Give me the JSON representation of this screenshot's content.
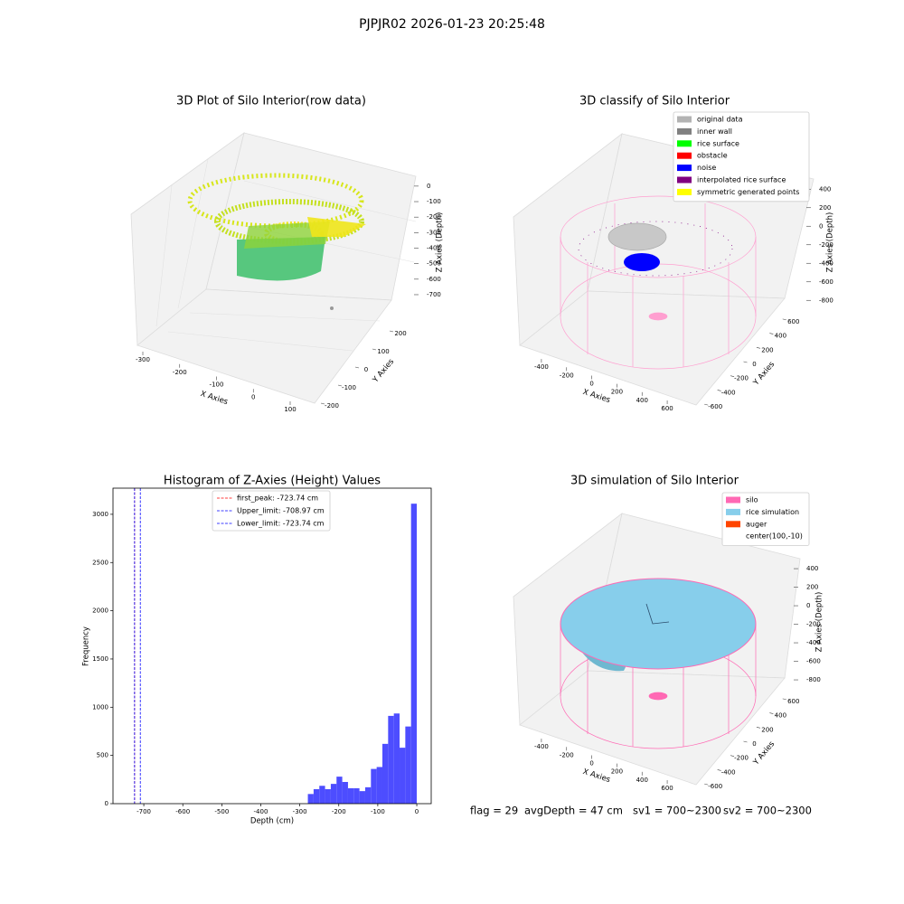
{
  "title": "PJPJR02 2026-01-23 20:25:48",
  "chart_data": [
    {
      "type": "scatter3d",
      "title": "3D Plot of Silo Interior(row data)",
      "xlabel": "X Axies",
      "ylabel": "Y Axies",
      "zlabel": "Z Axies (Depth)",
      "xlim": [
        -340,
        140
      ],
      "ylim": [
        -250,
        250
      ],
      "zlim": [
        -780,
        40
      ],
      "xticks": [
        -300,
        -200,
        -100,
        0,
        100
      ],
      "yticks": [
        -200,
        -100,
        0,
        100,
        200
      ],
      "zticks": [
        0,
        -100,
        -200,
        -300,
        -400,
        -500,
        -600,
        -700
      ]
    },
    {
      "type": "scatter3d",
      "title": "3D classify of Silo Interior",
      "xlabel": "X Axies",
      "ylabel": "Y Axies",
      "zlabel": "Z Axies (Depth)",
      "xlim": [
        -500,
        700
      ],
      "ylim": [
        -700,
        700
      ],
      "zlim": [
        -900,
        500
      ],
      "xticks": [
        -400,
        -200,
        0,
        200,
        400,
        600
      ],
      "yticks": [
        -600,
        -400,
        -200,
        0,
        200,
        400,
        600
      ],
      "zticks": [
        400,
        200,
        0,
        -200,
        -400,
        -600,
        -800
      ],
      "legend": [
        {
          "name": "original data",
          "color": "#b3b3b3"
        },
        {
          "name": "inner wall",
          "color": "#808080"
        },
        {
          "name": "rice surface",
          "color": "#00ff00"
        },
        {
          "name": "obstacle",
          "color": "#ff0000"
        },
        {
          "name": "noise",
          "color": "#0000ff"
        },
        {
          "name": "interpolated rice surface",
          "color": "#800080"
        },
        {
          "name": "symmetric generated points",
          "color": "#ffff00"
        }
      ]
    },
    {
      "type": "histogram",
      "title": "Histogram of Z-Axies (Height) Values",
      "xlabel": "Depth (cm)",
      "ylabel": "Frequency",
      "color": "#4d4dff",
      "bins": [
        -279.3,
        -264.6,
        -249.9,
        -235.2,
        -220.5,
        -205.8,
        -191.1,
        -176.4,
        -161.7,
        -147,
        -132.3,
        -117.6,
        -102.9,
        -88.2,
        -73.5,
        -58.8,
        -44.1,
        -29.4,
        -14.7,
        0
      ],
      "values": [
        100,
        150,
        185,
        150,
        205,
        280,
        225,
        160,
        160,
        130,
        170,
        360,
        380,
        620,
        910,
        935,
        580,
        800,
        3110
      ],
      "xlim": [
        -779,
        37
      ],
      "ylim": [
        0,
        3271
      ],
      "xticks": [
        -700,
        -600,
        -500,
        -400,
        -300,
        -200,
        -100,
        0
      ],
      "yticks": [
        0,
        500,
        1000,
        1500,
        2000,
        2500,
        3000
      ],
      "lines": [
        {
          "label": "first_peak: -723.74 cm",
          "value": -723.74,
          "color": "#ff0000"
        },
        {
          "label": "Upper_limit: -708.97 cm",
          "value": -708.97,
          "color": "#0000ff"
        },
        {
          "label": "Lower_limit: -723.74 cm",
          "value": -723.74,
          "color": "#0000ff"
        }
      ]
    },
    {
      "type": "surface3d",
      "title": "3D simulation of Silo Interior",
      "xlabel": "X Axies",
      "ylabel": "Y Axies",
      "zlabel": "Z Axies (Depth)",
      "xlim": [
        -500,
        700
      ],
      "ylim": [
        -700,
        700
      ],
      "zlim": [
        -900,
        500
      ],
      "xticks": [
        -400,
        -200,
        0,
        200,
        400,
        600
      ],
      "yticks": [
        -600,
        -400,
        -200,
        0,
        200,
        400,
        600
      ],
      "zticks": [
        400,
        200,
        0,
        -200,
        -400,
        -600,
        -800
      ],
      "legend": [
        {
          "name": "silo",
          "color": "#ff69b4"
        },
        {
          "name": "rice simulation",
          "color": "#87ceeb"
        },
        {
          "name": "auger",
          "color": "#ff4500"
        },
        {
          "name": "center(100,-10)",
          "color": "#ffffff"
        }
      ]
    }
  ],
  "footer": [
    "flag = 29",
    "avgDepth = 47 cm",
    "sv1 = 700~2300",
    "sv2 = 700~2300"
  ]
}
